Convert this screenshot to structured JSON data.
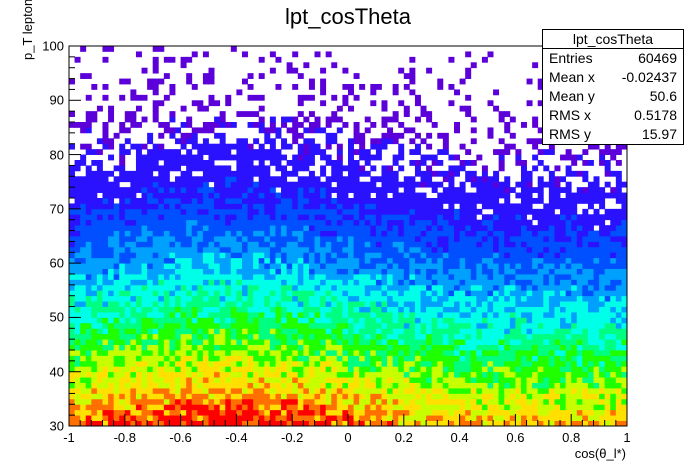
{
  "chart_data": {
    "type": "heatmap",
    "title": "lpt_cosTheta",
    "xlabel": "cos(θ_l*)",
    "ylabel": "p_T lepton",
    "xlim": [
      -1,
      1
    ],
    "ylim": [
      30,
      100
    ],
    "x_ticks": [
      "-1",
      "-0.8",
      "-0.6",
      "-0.4",
      "-0.2",
      "0",
      "0.2",
      "0.4",
      "0.6",
      "0.8",
      "1"
    ],
    "y_ticks": [
      "30",
      "40",
      "50",
      "60",
      "70",
      "80",
      "90",
      "100"
    ],
    "bins": {
      "nx": 100,
      "ny": 70
    },
    "distribution": {
      "description": "falling pT spectrum peaked at low pT, broad in cos(theta)",
      "peak_x": -0.45,
      "peak_y": 31,
      "x_mean": -0.02437,
      "y_mean": 50.6,
      "x_rms": 0.5178,
      "y_rms": 15.97
    },
    "palette": [
      "#5b00d8",
      "#2a12ff",
      "#0050ff",
      "#00a0ff",
      "#00ffe8",
      "#00ff80",
      "#20ff00",
      "#c8ff00",
      "#ffe000",
      "#ff7000",
      "#ff0000"
    ],
    "stats_box": {
      "title": "lpt_cosTheta",
      "rows": [
        {
          "label": "Entries",
          "value": "60469"
        },
        {
          "label": "Mean x",
          "value": "-0.02437"
        },
        {
          "label": "Mean y",
          "value": "50.6"
        },
        {
          "label": "RMS x",
          "value": "0.5178"
        },
        {
          "label": "RMS y",
          "value": "15.97"
        }
      ]
    }
  }
}
